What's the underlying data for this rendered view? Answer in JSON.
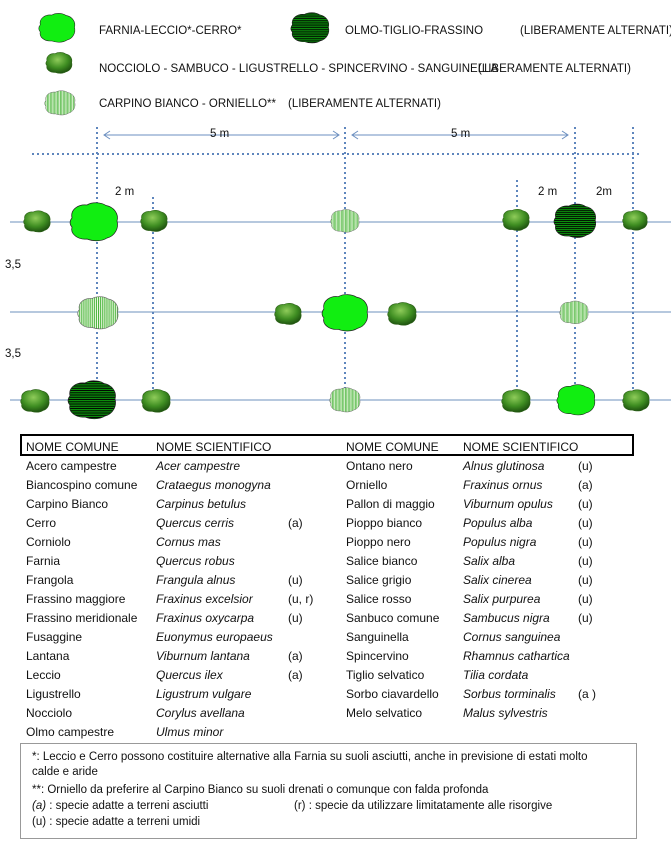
{
  "legend": [
    {
      "label": "FARNIA-LECCIO*-CERRO*",
      "extra": ""
    },
    {
      "label": "OLMO-TIGLIO-FRASSINO",
      "extra": "(LIBERAMENTE ALTERNATI)"
    },
    {
      "label": "NOCCIOLO - SAMBUCO - LIGUSTRELLO - SPINCERVINO - SANGUINELLA",
      "extra": "(LIBERAMENTE ALTERNATI)"
    },
    {
      "label": "CARPINO BIANCO - ORNIELLO**",
      "extra": "(LIBERAMENTE ALTERNATI)"
    }
  ],
  "dimensions": {
    "d5a": "5 m",
    "d5b": "5 m",
    "d2a": "2 m",
    "d2b": "2 m",
    "d2c": "2m",
    "r1": "3,5",
    "r2": "3,5"
  },
  "table": {
    "headers": [
      "NOME COMUNE",
      "NOME SCIENTIFICO",
      "NOME COMUNE",
      "NOME SCIENTIFICO"
    ],
    "left": [
      [
        "Acero campestre",
        "Acer campestre",
        ""
      ],
      [
        "Biancospino comune",
        "Crataegus monogyna",
        ""
      ],
      [
        "Carpino Bianco",
        "Carpinus betulus",
        ""
      ],
      [
        "Cerro",
        "Quercus cerris",
        "(a)"
      ],
      [
        "Corniolo",
        "Cornus mas",
        ""
      ],
      [
        "Farnia",
        "Quercus robus",
        ""
      ],
      [
        "Frangola",
        "Frangula alnus",
        "(u)"
      ],
      [
        "Frassino maggiore",
        "Fraxinus excelsior",
        "(u, r)"
      ],
      [
        "Frassino meridionale",
        "Fraxinus oxycarpa",
        "(u)"
      ],
      [
        "Fusaggine",
        "Euonymus europaeus",
        ""
      ],
      [
        "Lantana",
        "Viburnum lantana",
        "(a)"
      ],
      [
        "Leccio",
        "Quercus ilex",
        "(a)"
      ],
      [
        "Ligustrello",
        "Ligustrum vulgare",
        ""
      ],
      [
        "Nocciolo",
        "Corylus avellana",
        ""
      ],
      [
        "Olmo campestre",
        "Ulmus minor",
        ""
      ]
    ],
    "right": [
      [
        "Ontano nero",
        "Alnus glutinosa",
        "(u)"
      ],
      [
        "Orniello",
        "Fraxinus ornus",
        "(a)"
      ],
      [
        "Pallon di maggio",
        "Viburnum opulus",
        "(u)"
      ],
      [
        "Pioppo bianco",
        "Populus alba",
        "(u)"
      ],
      [
        "Pioppo nero",
        "Populus nigra",
        "(u)"
      ],
      [
        "Salice bianco",
        "Salix alba",
        "(u)"
      ],
      [
        "Salice grigio",
        "Salix cinerea",
        "(u)"
      ],
      [
        "Salice rosso",
        "Salix purpurea",
        "(u)"
      ],
      [
        "Sanbuco comune",
        "Sambucus nigra",
        "(u)"
      ],
      [
        "Sanguinella",
        "Cornus sanguinea",
        ""
      ],
      [
        "Spincervino",
        "Rhamnus cathartica",
        ""
      ],
      [
        "Tiglio selvatico",
        "Tilia cordata",
        ""
      ],
      [
        "Sorbo ciavardello",
        "Sorbus torminalis",
        "(a )"
      ],
      [
        "Melo selvatico",
        "Malus sylvestris",
        ""
      ]
    ]
  },
  "notes": {
    "n1a": "*: Leccio e Cerro possono costituire alternative alla Farnia su suoli asciutti, anche in previsione di estati molto",
    "n1b": "calde e aride",
    "n2": "**: Orniello da preferire al Carpino Bianco su suoli drenati o comunque con falda profonda",
    "n3a_sym": "(a)",
    "n3a": " : specie adatte a terreni asciutti",
    "n3b_sym": "(r)",
    "n3b": " : specie da utilizzare limitatamente alle risorgive",
    "n4": "(u) : specie adatte a terreni umidi"
  },
  "colors": {
    "bright_green": "#11ee11",
    "dark_green": "#0a8a0a",
    "shrub": "#3d8c1f",
    "guide_blue": "#6b8fc0"
  }
}
